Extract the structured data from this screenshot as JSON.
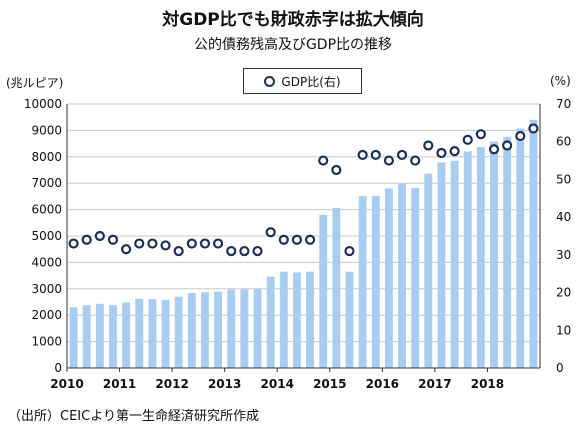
{
  "chart_data": {
    "type": "bar",
    "title": "対GDP比でも財政赤字は拡大傾向",
    "subtitle": "公的債務残高及びGDP比の推移",
    "left_axis_label": "(兆ルピア)",
    "right_axis_label": "(%)",
    "legend": [
      "GDP比(右)"
    ],
    "legend_placement": "top-center",
    "source_note": "（出所）CEICより第一生命経済研究所作成",
    "grid": true,
    "x_tick_labels": [
      "2010",
      "2011",
      "2012",
      "2013",
      "2014",
      "2015",
      "2016",
      "2017",
      "2018"
    ],
    "x_period": "quarterly",
    "x_range": [
      "2010Q1",
      "2018Q4"
    ],
    "ylim_left": [
      0,
      10000
    ],
    "ylim_right": [
      0,
      70
    ],
    "y_ticks_left": [
      "0",
      "1000",
      "2000",
      "3000",
      "4000",
      "5000",
      "6000",
      "7000",
      "8000",
      "9000",
      "10000"
    ],
    "y_ticks_right": [
      "0",
      "10",
      "20",
      "30",
      "40",
      "50",
      "60",
      "70"
    ],
    "series": [
      {
        "name": "公的債務残高",
        "axis": "left",
        "style": "bar",
        "color": "#a8cdf0",
        "values": [
          2300,
          2380,
          2430,
          2380,
          2480,
          2620,
          2610,
          2580,
          2700,
          2840,
          2870,
          2890,
          2970,
          2980,
          2990,
          3460,
          3650,
          3620,
          3650,
          5800,
          6060,
          3650,
          6510,
          6520,
          6800,
          6980,
          6820,
          7360,
          7790,
          7850,
          8200,
          8370,
          8580,
          8760,
          9070,
          9400
        ]
      },
      {
        "name": "GDP比(右)",
        "axis": "right",
        "style": "scatter",
        "marker_color": "#1b2f5c",
        "values": [
          33,
          34,
          35,
          34,
          31.5,
          33,
          33,
          32.5,
          31,
          33,
          33,
          33,
          31,
          31,
          31,
          36,
          34,
          34,
          34,
          55,
          52.5,
          31,
          56.5,
          56.5,
          55,
          56.5,
          55,
          59,
          57,
          57.5,
          60.5,
          62,
          58,
          59,
          61.5,
          63.5
        ]
      }
    ]
  }
}
